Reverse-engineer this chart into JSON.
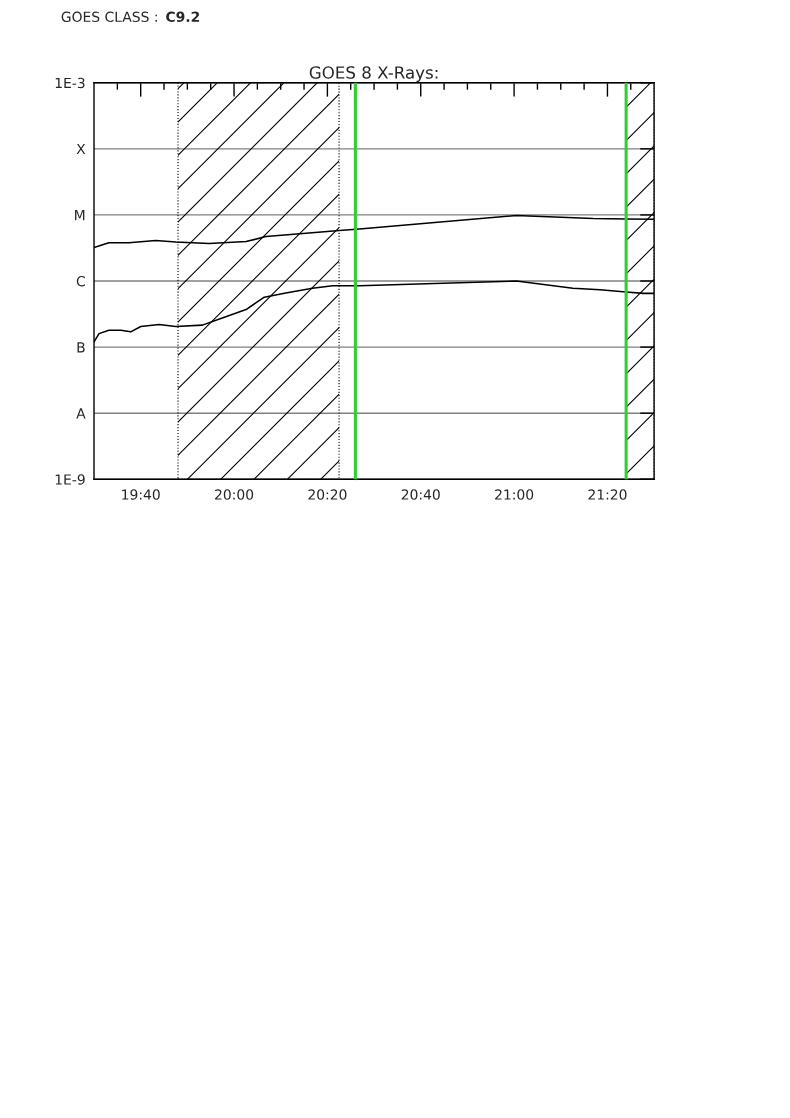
{
  "chart_data": {
    "type": "line",
    "title": "GOES 8 X-Rays:",
    "annotations": [
      "GOES CLASS :",
      "C9.2"
    ],
    "log": "y",
    "grid": "y",
    "xlim": [
      19.5,
      21.5
    ],
    "ylim": [
      1e-09,
      0.001
    ],
    "xticks": [
      {
        "value": 19.583333,
        "label": null
      },
      {
        "value": 19.666667,
        "label": "19:40"
      },
      {
        "value": 19.75,
        "label": null
      },
      {
        "value": 19.833333,
        "label": null
      },
      {
        "value": 19.916667,
        "label": null
      },
      {
        "value": 20,
        "label": "20:00"
      },
      {
        "value": 20.083333,
        "label": null
      },
      {
        "value": 20.166667,
        "label": null
      },
      {
        "value": 20.25,
        "label": null
      },
      {
        "value": 20.333333,
        "label": "20:20"
      },
      {
        "value": 20.416667,
        "label": null
      },
      {
        "value": 20.5,
        "label": null
      },
      {
        "value": 20.583333,
        "label": null
      },
      {
        "value": 20.666667,
        "label": "20:40"
      },
      {
        "value": 20.75,
        "label": null
      },
      {
        "value": 20.833333,
        "label": null
      },
      {
        "value": 20.916667,
        "label": null
      },
      {
        "value": 21,
        "label": "21:00"
      },
      {
        "value": 21.083333,
        "label": null
      },
      {
        "value": 21.166667,
        "label": null
      },
      {
        "value": 21.25,
        "label": null
      },
      {
        "value": 21.333333,
        "label": "21:20"
      },
      {
        "value": 21.416667,
        "label": null
      }
    ],
    "yticks": [
      {
        "value": 1e-09,
        "label": "1E-9"
      },
      {
        "value": 1e-08,
        "label": "A"
      },
      {
        "value": 1e-07,
        "label": "B"
      },
      {
        "value": 1e-06,
        "label": "C"
      },
      {
        "value": 1e-05,
        "label": "M"
      },
      {
        "value": 0.0001,
        "label": "X"
      },
      {
        "value": 0.001,
        "label": "1E-3"
      }
    ],
    "bands": [
      {
        "axis": "x",
        "from": 19.8,
        "to": 20.375,
        "color": "#000000"
      },
      {
        "axis": "x",
        "from": 21.4,
        "to": 21.5,
        "color": "#000000"
      }
    ],
    "ref_lines": [
      {
        "axis": "x",
        "value": 20.433333,
        "color": "#33cc33"
      },
      {
        "axis": "x",
        "value": 21.4,
        "color": "#33cc33"
      }
    ],
    "series": [
      {
        "color": "#000000",
        "x": [
          19.5,
          19.553,
          19.625,
          19.72,
          19.792,
          19.911,
          20.043,
          20.114,
          20.257,
          20.376,
          20.448,
          21.008,
          21.282,
          21.4,
          21.5
        ],
        "values": [
          3.2e-06,
          3.8e-06,
          3.8e-06,
          4.1e-06,
          3.9e-06,
          3.7e-06,
          3.95e-06,
          4.7e-06,
          5.3e-06,
          5.8e-06,
          6.1e-06,
          9.8e-06,
          8.8e-06,
          8.7e-06,
          8.6e-06
        ]
      },
      {
        "color": "#000000",
        "x": [
          19.5,
          19.518,
          19.553,
          19.596,
          19.631,
          19.667,
          19.732,
          19.792,
          19.887,
          19.958,
          20.043,
          20.108,
          20.185,
          20.28,
          20.352,
          20.448,
          21.008,
          21.21,
          21.307,
          21.4,
          21.462,
          21.5
        ],
        "values": [
          1.2e-07,
          1.6e-07,
          1.8e-07,
          1.8e-07,
          1.7e-07,
          2.05e-07,
          2.2e-07,
          2.05e-07,
          2.15e-07,
          2.75e-07,
          3.7e-07,
          5.7e-07,
          6.6e-07,
          7.8e-07,
          8.5e-07,
          8.5e-07,
          1e-06,
          7.8e-07,
          7.4e-07,
          6.8e-07,
          6.5e-07,
          6.5e-07
        ]
      }
    ]
  }
}
